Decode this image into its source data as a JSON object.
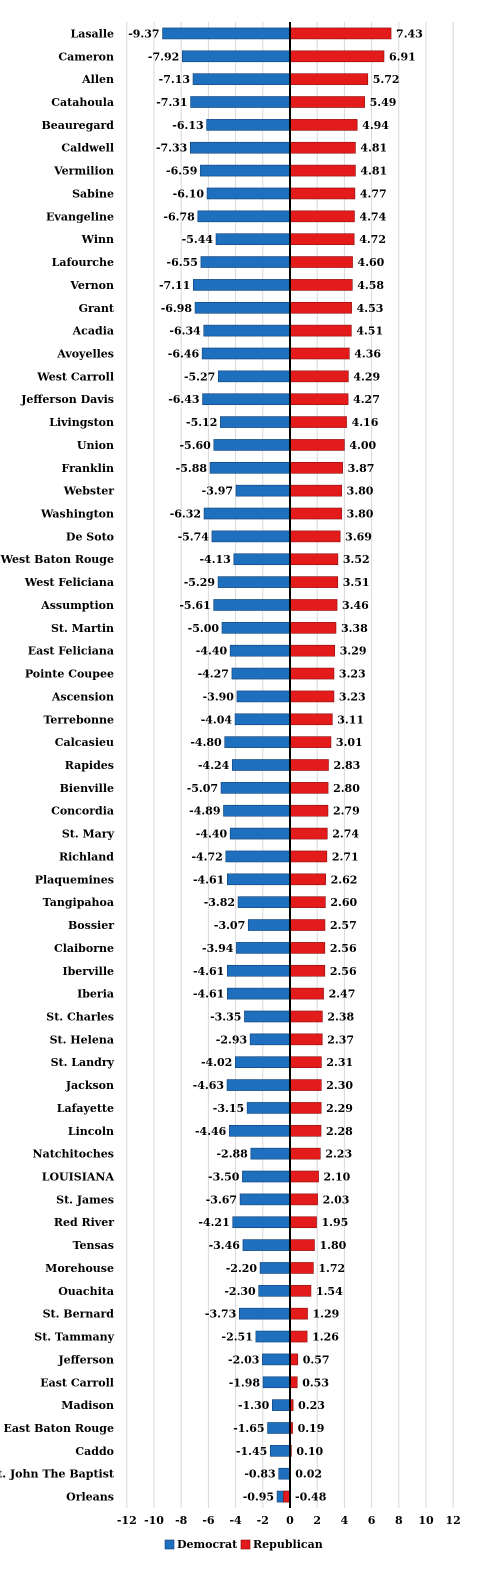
{
  "chart_data": {
    "type": "bar",
    "orientation": "horizontal",
    "categories": [
      "Lasalle",
      "Cameron",
      "Allen",
      "Catahoula",
      "Beauregard",
      "Caldwell",
      "Vermilion",
      "Sabine",
      "Evangeline",
      "Winn",
      "Lafourche",
      "Vernon",
      "Grant",
      "Acadia",
      "Avoyelles",
      "West Carroll",
      "Jefferson Davis",
      "Livingston",
      "Union",
      "Franklin",
      "Webster",
      "Washington",
      "De Soto",
      "West Baton Rouge",
      "West Feliciana",
      "Assumption",
      "St. Martin",
      "East Feliciana",
      "Pointe Coupee",
      "Ascension",
      "Terrebonne",
      "Calcasieu",
      "Rapides",
      "Bienville",
      "Concordia",
      "St. Mary",
      "Richland",
      "Plaquemines",
      "Tangipahoa",
      "Bossier",
      "Claiborne",
      "Iberville",
      "Iberia",
      "St. Charles",
      "St. Helena",
      "St. Landry",
      "Jackson",
      "Lafayette",
      "Lincoln",
      "Natchitoches",
      "LOUISIANA",
      "St. James",
      "Red River",
      "Tensas",
      "Morehouse",
      "Ouachita",
      "St. Bernard",
      "St. Tammany",
      "Jefferson",
      "East Carroll",
      "Madison",
      "East Baton Rouge",
      "Caddo",
      "St. John The Baptist",
      "Orleans"
    ],
    "series": [
      {
        "name": "Democrat",
        "color": "#1f6fbf",
        "values": [
          -9.37,
          -7.92,
          -7.13,
          -7.31,
          -6.13,
          -7.33,
          -6.59,
          -6.1,
          -6.78,
          -5.44,
          -6.55,
          -7.11,
          -6.98,
          -6.34,
          -6.46,
          -5.27,
          -6.43,
          -5.12,
          -5.6,
          -5.88,
          -3.97,
          -6.32,
          -5.74,
          -4.13,
          -5.29,
          -5.61,
          -5.0,
          -4.4,
          -4.27,
          -3.9,
          -4.04,
          -4.8,
          -4.24,
          -5.07,
          -4.89,
          -4.4,
          -4.72,
          -4.61,
          -3.82,
          -3.07,
          -3.94,
          -4.61,
          -4.61,
          -3.35,
          -2.93,
          -4.02,
          -4.63,
          -3.15,
          -4.46,
          -2.88,
          -3.5,
          -3.67,
          -4.21,
          -3.46,
          -2.2,
          -2.3,
          -3.73,
          -2.51,
          -2.03,
          -1.98,
          -1.3,
          -1.65,
          -1.45,
          -0.83,
          -0.95
        ],
        "labels": [
          "-9.37",
          "-7.92",
          "-7.13",
          "-7.31",
          "-6.13",
          "-7.33",
          "-6.59",
          "-6.10",
          "-6.78",
          "-5.44",
          "-6.55",
          "-7.11",
          "-6.98",
          "-6.34",
          "-6.46",
          "-5.27",
          "-6.43",
          "-5.12",
          "-5.60",
          "-5.88",
          "-3.97",
          "-6.32",
          "-5.74",
          "-4.13",
          "-5.29",
          "-5.61",
          "-5.00",
          "-4.40",
          "-4.27",
          "-3.90",
          "-4.04",
          "-4.80",
          "-4.24",
          "-5.07",
          "-4.89",
          "-4.40",
          "-4.72",
          "-4.61",
          "-3.82",
          "-3.07",
          "-3.94",
          "-4.61",
          "-4.61",
          "-3.35",
          "-2.93",
          "-4.02",
          "-4.63",
          "-3.15",
          "-4.46",
          "-2.88",
          "-3.50",
          "-3.67",
          "-4.21",
          "-3.46",
          "-2.20",
          "-2.30",
          "-3.73",
          "-2.51",
          "-2.03",
          "-1.98",
          "-1.30",
          "-1.65",
          "-1.45",
          "-0.83",
          "-0.95"
        ]
      },
      {
        "name": "Republican",
        "color": "#e31b1b",
        "values": [
          7.43,
          6.91,
          5.72,
          5.49,
          4.94,
          4.81,
          4.81,
          4.77,
          4.74,
          4.72,
          4.6,
          4.58,
          4.53,
          4.51,
          4.36,
          4.29,
          4.27,
          4.16,
          4.0,
          3.87,
          3.8,
          3.8,
          3.69,
          3.52,
          3.51,
          3.46,
          3.38,
          3.29,
          3.23,
          3.23,
          3.11,
          3.01,
          2.83,
          2.8,
          2.79,
          2.74,
          2.71,
          2.62,
          2.6,
          2.57,
          2.56,
          2.56,
          2.47,
          2.38,
          2.37,
          2.31,
          2.3,
          2.29,
          2.28,
          2.23,
          2.1,
          2.03,
          1.95,
          1.8,
          1.72,
          1.54,
          1.29,
          1.26,
          0.57,
          0.53,
          0.23,
          0.19,
          0.1,
          0.02,
          -0.48
        ],
        "labels": [
          "7.43",
          "6.91",
          "5.72",
          "5.49",
          "4.94",
          "4.81",
          "4.81",
          "4.77",
          "4.74",
          "4.72",
          "4.60",
          "4.58",
          "4.53",
          "4.51",
          "4.36",
          "4.29",
          "4.27",
          "4.16",
          "4.00",
          "3.87",
          "3.80",
          "3.80",
          "3.69",
          "3.52",
          "3.51",
          "3.46",
          "3.38",
          "3.29",
          "3.23",
          "3.23",
          "3.11",
          "3.01",
          "2.83",
          "2.80",
          "2.79",
          "2.74",
          "2.71",
          "2.62",
          "2.60",
          "2.57",
          "2.56",
          "2.56",
          "2.47",
          "2.38",
          "2.37",
          "2.31",
          "2.30",
          "2.29",
          "2.28",
          "2.23",
          "2.10",
          "2.03",
          "1.95",
          "1.80",
          "1.72",
          "1.54",
          "1.29",
          "1.26",
          "0.57",
          "0.53",
          "0.23",
          "0.19",
          "0.10",
          "0.02",
          "-0.48"
        ]
      }
    ],
    "xlim": [
      -12,
      12
    ],
    "xticks": [
      -12,
      -10,
      -8,
      -6,
      -4,
      -2,
      0,
      2,
      4,
      6,
      8,
      10,
      12
    ],
    "xtick_labels": [
      "-12",
      "-10",
      "-8",
      "-6",
      "-4",
      "-2",
      "0",
      "2",
      "4",
      "6",
      "8",
      "10",
      "12"
    ],
    "grid": "vertical",
    "legend": "bottom",
    "title": "",
    "xlabel": "",
    "ylabel": ""
  }
}
